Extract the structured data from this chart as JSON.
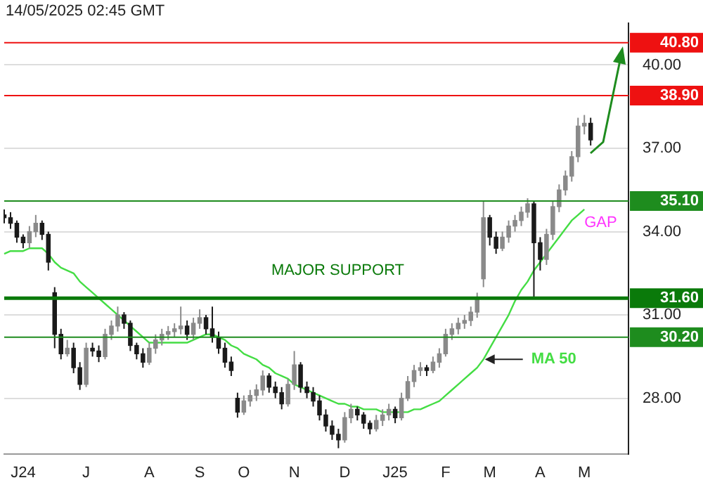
{
  "chart_data": {
    "type": "candlestick",
    "categories": [
      null,
      null,
      null,
      "J24",
      null,
      null,
      null,
      null,
      null,
      null,
      null,
      null,
      null,
      "J",
      null,
      null,
      null,
      null,
      null,
      null,
      null,
      null,
      null,
      "A",
      null,
      null,
      null,
      null,
      null,
      null,
      null,
      "S",
      null,
      null,
      null,
      null,
      null,
      null,
      "O",
      null,
      null,
      null,
      null,
      null,
      null,
      null,
      "N",
      null,
      null,
      null,
      null,
      null,
      null,
      null,
      "D",
      null,
      null,
      null,
      null,
      null,
      null,
      null,
      "J25",
      null,
      null,
      null,
      null,
      null,
      null,
      null,
      "F",
      null,
      null,
      null,
      null,
      null,
      null,
      "M",
      null,
      null,
      null,
      null,
      null,
      null,
      null,
      "A",
      null,
      null,
      null,
      null,
      null,
      null,
      "M",
      null,
      null,
      null,
      null,
      null,
      null,
      null
    ],
    "ohlc": [
      [
        34.6,
        34.8,
        34.3,
        34.5
      ],
      [
        34.5,
        34.7,
        34.1,
        34.3
      ],
      [
        34.3,
        34.4,
        33.6,
        33.8
      ],
      [
        33.8,
        33.9,
        33.4,
        33.6
      ],
      [
        33.6,
        34.2,
        33.4,
        34.0
      ],
      [
        34.0,
        34.6,
        33.8,
        34.3
      ],
      [
        34.3,
        34.4,
        33.7,
        33.9
      ],
      [
        33.9,
        34.0,
        32.6,
        32.9
      ],
      [
        31.8,
        32.0,
        29.8,
        30.3
      ],
      [
        30.3,
        30.5,
        29.4,
        29.6
      ],
      [
        29.6,
        30.1,
        29.5,
        29.8
      ],
      [
        29.8,
        30.0,
        28.9,
        29.1
      ],
      [
        29.1,
        29.3,
        28.3,
        28.5
      ],
      [
        28.5,
        30.0,
        28.4,
        29.8
      ],
      [
        29.8,
        30.0,
        29.5,
        29.7
      ],
      [
        29.7,
        29.9,
        29.3,
        29.5
      ],
      [
        29.5,
        30.5,
        29.4,
        30.3
      ],
      [
        30.3,
        30.8,
        30.1,
        30.6
      ],
      [
        30.6,
        31.3,
        30.4,
        31.0
      ],
      [
        31.0,
        31.1,
        30.5,
        30.7
      ],
      [
        30.7,
        30.8,
        29.7,
        29.9
      ],
      [
        29.9,
        30.0,
        29.4,
        29.6
      ],
      [
        29.6,
        29.8,
        29.1,
        29.3
      ],
      [
        29.3,
        30.0,
        29.2,
        29.8
      ],
      [
        29.8,
        30.3,
        29.6,
        30.1
      ],
      [
        30.1,
        30.5,
        29.9,
        30.3
      ],
      [
        30.3,
        30.6,
        30.1,
        30.4
      ],
      [
        30.4,
        30.7,
        30.2,
        30.5
      ],
      [
        30.5,
        31.3,
        30.3,
        30.6
      ],
      [
        30.6,
        30.8,
        30.1,
        30.3
      ],
      [
        30.3,
        30.9,
        30.1,
        30.7
      ],
      [
        30.7,
        31.2,
        30.5,
        30.9
      ],
      [
        30.9,
        31.0,
        30.3,
        30.5
      ],
      [
        30.5,
        31.3,
        30.0,
        30.2
      ],
      [
        30.2,
        30.4,
        29.6,
        29.8
      ],
      [
        29.8,
        30.0,
        29.1,
        29.3
      ],
      [
        29.3,
        29.5,
        28.8,
        29.0
      ],
      [
        28.0,
        28.2,
        27.3,
        27.5
      ],
      [
        27.5,
        28.1,
        27.4,
        27.9
      ],
      [
        27.9,
        28.3,
        27.7,
        28.1
      ],
      [
        28.1,
        28.5,
        27.9,
        28.3
      ],
      [
        28.3,
        29.0,
        28.1,
        28.8
      ],
      [
        28.8,
        28.9,
        28.2,
        28.4
      ],
      [
        28.4,
        28.6,
        28.0,
        28.2
      ],
      [
        28.2,
        28.4,
        27.6,
        27.8
      ],
      [
        27.8,
        28.7,
        27.7,
        28.5
      ],
      [
        28.5,
        29.7,
        28.3,
        29.2
      ],
      [
        29.2,
        29.3,
        28.2,
        28.4
      ],
      [
        28.4,
        28.6,
        28.0,
        28.2
      ],
      [
        28.2,
        28.4,
        27.7,
        27.9
      ],
      [
        27.9,
        28.1,
        27.2,
        27.4
      ],
      [
        27.4,
        27.6,
        26.8,
        27.0
      ],
      [
        27.0,
        27.2,
        26.5,
        26.7
      ],
      [
        26.7,
        26.9,
        26.2,
        26.5
      ],
      [
        26.5,
        27.5,
        26.4,
        27.3
      ],
      [
        27.3,
        27.8,
        27.1,
        27.6
      ],
      [
        27.6,
        27.7,
        27.2,
        27.4
      ],
      [
        27.4,
        27.5,
        26.9,
        27.1
      ],
      [
        27.1,
        27.2,
        26.7,
        26.9
      ],
      [
        26.9,
        27.4,
        26.8,
        27.2
      ],
      [
        27.2,
        27.6,
        27.0,
        27.4
      ],
      [
        27.4,
        27.8,
        27.2,
        27.6
      ],
      [
        27.6,
        27.7,
        27.1,
        27.3
      ],
      [
        27.3,
        28.2,
        27.2,
        28.0
      ],
      [
        28.0,
        28.8,
        27.9,
        28.6
      ],
      [
        28.6,
        29.2,
        28.4,
        29.0
      ],
      [
        29.0,
        29.3,
        28.8,
        29.1
      ],
      [
        29.1,
        29.2,
        28.8,
        29.0
      ],
      [
        29.0,
        29.5,
        28.9,
        29.3
      ],
      [
        29.3,
        29.8,
        29.1,
        29.6
      ],
      [
        29.6,
        30.5,
        29.5,
        30.3
      ],
      [
        30.3,
        30.7,
        30.1,
        30.5
      ],
      [
        30.5,
        30.9,
        30.3,
        30.7
      ],
      [
        30.7,
        31.0,
        30.5,
        30.8
      ],
      [
        30.8,
        31.3,
        30.6,
        31.1
      ],
      [
        31.1,
        31.8,
        30.9,
        31.6
      ],
      [
        32.3,
        35.1,
        32.0,
        34.5
      ],
      [
        34.5,
        34.6,
        33.5,
        33.8
      ],
      [
        33.8,
        34.0,
        33.2,
        33.4
      ],
      [
        33.4,
        34.0,
        33.3,
        33.8
      ],
      [
        33.8,
        34.4,
        33.6,
        34.2
      ],
      [
        34.2,
        34.6,
        34.0,
        34.4
      ],
      [
        34.4,
        34.9,
        34.2,
        34.7
      ],
      [
        34.7,
        35.2,
        34.5,
        35.0
      ],
      [
        35.0,
        35.1,
        31.6,
        33.6
      ],
      [
        33.6,
        33.8,
        32.6,
        33.0
      ],
      [
        33.0,
        34.1,
        32.8,
        33.9
      ],
      [
        33.9,
        35.1,
        33.7,
        34.9
      ],
      [
        34.9,
        35.7,
        34.7,
        35.5
      ],
      [
        35.5,
        36.2,
        35.3,
        36.0
      ],
      [
        36.0,
        36.9,
        35.8,
        36.7
      ],
      [
        36.7,
        38.1,
        36.5,
        37.8
      ],
      [
        37.8,
        38.2,
        37.5,
        37.9
      ],
      [
        37.9,
        38.1,
        37.1,
        37.3
      ],
      null,
      null,
      null,
      null,
      null,
      null
    ],
    "series": [
      {
        "type": "line",
        "name": "MA 50",
        "color": "#44dd44",
        "values": [
          33.2,
          33.3,
          33.3,
          33.3,
          33.4,
          33.4,
          33.4,
          33.2,
          32.9,
          32.7,
          32.6,
          32.5,
          32.2,
          32.0,
          31.8,
          31.6,
          31.4,
          31.2,
          31.0,
          30.8,
          30.6,
          30.4,
          30.2,
          30.0,
          30.0,
          30.0,
          30.0,
          30.0,
          30.0,
          30.0,
          30.1,
          30.2,
          30.3,
          30.3,
          30.2,
          30.1,
          29.9,
          29.8,
          29.6,
          29.5,
          29.4,
          29.2,
          29.1,
          28.9,
          28.8,
          28.7,
          28.5,
          28.4,
          28.3,
          28.2,
          28.1,
          28.0,
          27.9,
          27.8,
          27.8,
          27.7,
          27.7,
          27.6,
          27.6,
          27.6,
          27.5,
          27.5,
          27.5,
          27.5,
          27.5,
          27.6,
          27.6,
          27.7,
          27.8,
          27.9,
          28.1,
          28.3,
          28.5,
          28.7,
          28.9,
          29.1,
          29.4,
          29.8,
          30.2,
          30.6,
          31.0,
          31.5,
          31.9,
          32.2,
          32.6,
          32.9,
          33.2,
          33.5,
          33.8,
          34.1,
          34.4,
          34.6,
          34.8,
          null,
          null,
          null,
          null,
          null,
          null,
          null
        ]
      }
    ],
    "ylim": [
      26,
      41.5
    ],
    "yticks": [
      {
        "value": 28,
        "label": "28.00"
      },
      {
        "value": 31,
        "label": "31.00"
      },
      {
        "value": 34,
        "label": "34.00"
      },
      {
        "value": 37,
        "label": "37.00"
      },
      {
        "value": 40,
        "label": "40.00"
      }
    ],
    "grid": "y",
    "legend": false,
    "ref_lines": [
      {
        "axis": "y",
        "value": 40.8,
        "label": "40.80",
        "color": "#ee1111"
      },
      {
        "axis": "y",
        "value": 38.9,
        "label": "38.90",
        "color": "#ee1111"
      },
      {
        "axis": "y",
        "value": 35.1,
        "label": "35.10",
        "color": "#1e8c1e"
      },
      {
        "axis": "y",
        "value": 31.6,
        "label": "31.60",
        "color": "#0a7a0a"
      },
      {
        "axis": "y",
        "value": 30.2,
        "label": "30.20",
        "color": "#1e8c1e"
      }
    ],
    "annotations": [
      "14/05/2025 02:45 GMT",
      "MAJOR SUPPORT",
      "GAP"
    ]
  }
}
